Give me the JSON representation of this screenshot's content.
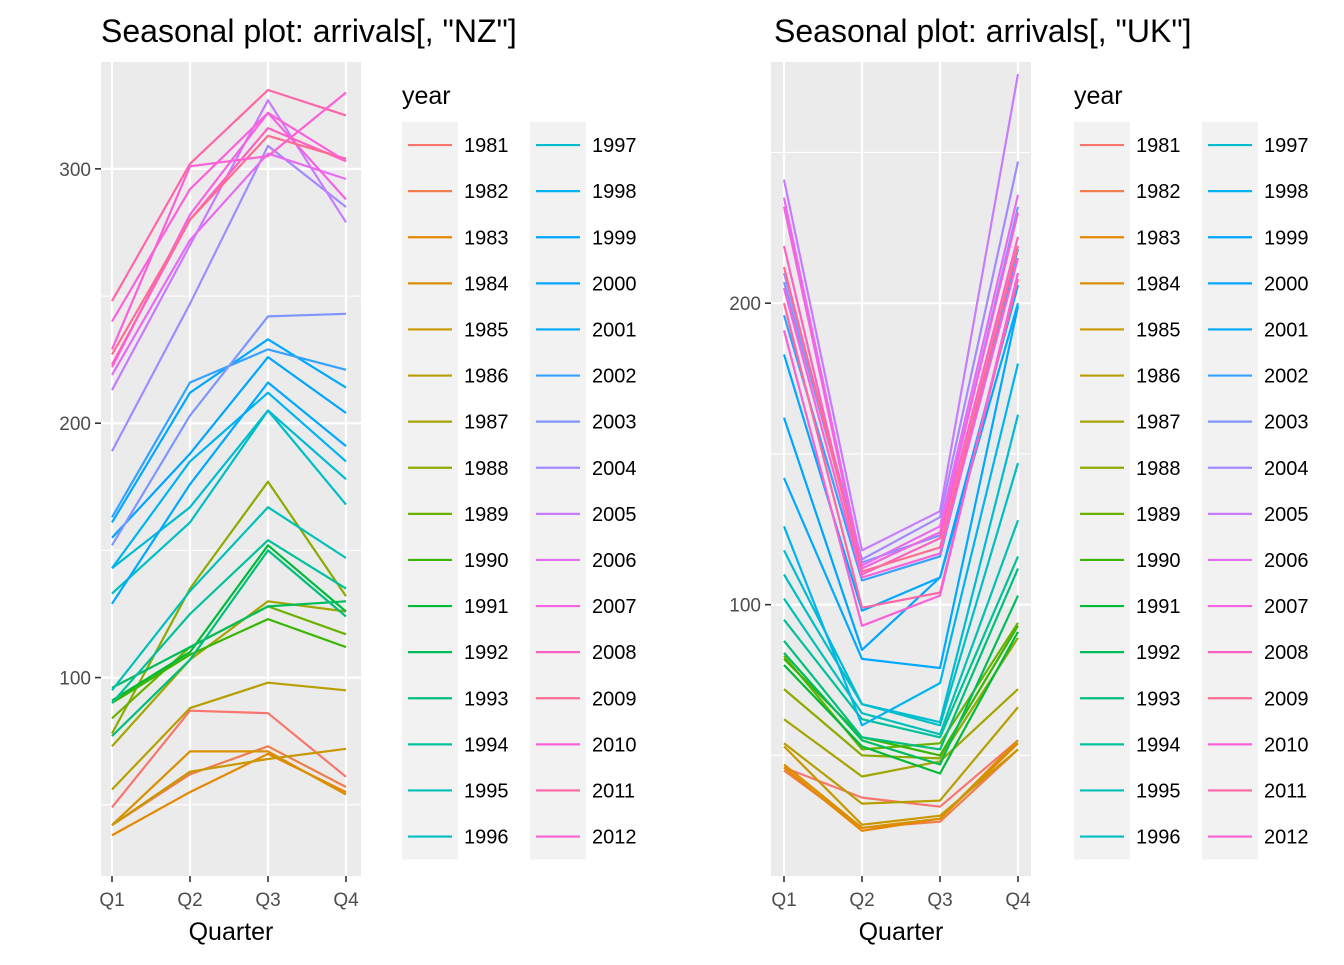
{
  "x_axis": {
    "label": "Quarter",
    "ticks": [
      "Q1",
      "Q2",
      "Q3",
      "Q4"
    ]
  },
  "legend": {
    "title": "year",
    "years": [
      "1981",
      "1982",
      "1983",
      "1984",
      "1985",
      "1986",
      "1987",
      "1988",
      "1989",
      "1990",
      "1991",
      "1992",
      "1993",
      "1994",
      "1995",
      "1996",
      "1997",
      "1998",
      "1999",
      "2000",
      "2001",
      "2002",
      "2003",
      "2004",
      "2005",
      "2006",
      "2007",
      "2008",
      "2009",
      "2010",
      "2011",
      "2012"
    ],
    "colors": [
      "#F8766D",
      "#F07E4D",
      "#E58700",
      "#D89000",
      "#C99800",
      "#B79F00",
      "#A3A500",
      "#8BAB00",
      "#6BB100",
      "#39B600",
      "#00BA38",
      "#00BD5C",
      "#00BF7D",
      "#00C19A",
      "#00C0B8",
      "#00BFC4",
      "#00BCD1",
      "#00B4F0",
      "#00A9FF",
      "#00A5FF",
      "#00A9FF",
      "#35A2FF",
      "#7F96FF",
      "#A58AFF",
      "#C77CFF",
      "#E76BF3",
      "#F564E3",
      "#FF61C3",
      "#FF6C91",
      "#FA62DB",
      "#FF66A8",
      "#FB61D7"
    ]
  },
  "chart_data": [
    {
      "type": "line",
      "title": "Seasonal plot: arrivals[, \"NZ\"]",
      "xlabel": "Quarter",
      "ylabel": "",
      "categories": [
        "Q1",
        "Q2",
        "Q3",
        "Q4"
      ],
      "ylim": [
        22,
        342
      ],
      "yticks": [
        100,
        200,
        300
      ],
      "grid": true,
      "legend_position": "right",
      "series": [
        {
          "name": "1981",
          "values": [
            49,
            87,
            86,
            61
          ]
        },
        {
          "name": "1982",
          "values": [
            42,
            62,
            73,
            57
          ]
        },
        {
          "name": "1983",
          "values": [
            38,
            55,
            70,
            55
          ]
        },
        {
          "name": "1984",
          "values": [
            42,
            71,
            71,
            54
          ]
        },
        {
          "name": "1985",
          "values": [
            42,
            63,
            68,
            72
          ]
        },
        {
          "name": "1986",
          "values": [
            56,
            88,
            98,
            95
          ]
        },
        {
          "name": "1987",
          "values": [
            73,
            107,
            130,
            126
          ]
        },
        {
          "name": "1988",
          "values": [
            78,
            135,
            177,
            132
          ]
        },
        {
          "name": "1989",
          "values": [
            84,
            112,
            128,
            117
          ]
        },
        {
          "name": "1990",
          "values": [
            90,
            109,
            123,
            112
          ]
        },
        {
          "name": "1991",
          "values": [
            91,
            110,
            152,
            126
          ]
        },
        {
          "name": "1992",
          "values": [
            96,
            112,
            128,
            130
          ]
        },
        {
          "name": "1993",
          "values": [
            77,
            107,
            150,
            124
          ]
        },
        {
          "name": "1994",
          "values": [
            90,
            125,
            154,
            135
          ]
        },
        {
          "name": "1995",
          "values": [
            95,
            134,
            167,
            147
          ]
        },
        {
          "name": "1996",
          "values": [
            133,
            161,
            205,
            168
          ]
        },
        {
          "name": "1997",
          "values": [
            143,
            167,
            205,
            178
          ]
        },
        {
          "name": "1998",
          "values": [
            143,
            185,
            212,
            185
          ]
        },
        {
          "name": "1999",
          "values": [
            129,
            176,
            216,
            191
          ]
        },
        {
          "name": "2000",
          "values": [
            155,
            188,
            226,
            204
          ]
        },
        {
          "name": "2001",
          "values": [
            161,
            212,
            233,
            214
          ]
        },
        {
          "name": "2002",
          "values": [
            163,
            216,
            229,
            221
          ]
        },
        {
          "name": "2003",
          "values": [
            152,
            203,
            242,
            243
          ]
        },
        {
          "name": "2004",
          "values": [
            189,
            247,
            309,
            285
          ]
        },
        {
          "name": "2005",
          "values": [
            213,
            270,
            327,
            279
          ]
        },
        {
          "name": "2006",
          "values": [
            219,
            272,
            306,
            296
          ]
        },
        {
          "name": "2007",
          "values": [
            222,
            282,
            322,
            288
          ]
        },
        {
          "name": "2008",
          "values": [
            223,
            280,
            316,
            303
          ]
        },
        {
          "name": "2009",
          "values": [
            227,
            280,
            313,
            304
          ]
        },
        {
          "name": "2010",
          "values": [
            240,
            292,
            322,
            303
          ]
        },
        {
          "name": "2011",
          "values": [
            248,
            302,
            331,
            321
          ]
        },
        {
          "name": "2012",
          "values": [
            229,
            301,
            305,
            330
          ]
        }
      ]
    },
    {
      "type": "line",
      "title": "Seasonal plot: arrivals[, \"UK\"]",
      "xlabel": "Quarter",
      "ylabel": "",
      "categories": [
        "Q1",
        "Q2",
        "Q3",
        "Q4"
      ],
      "ylim": [
        10,
        280
      ],
      "yticks": [
        100,
        200
      ],
      "grid": true,
      "legend_position": "right",
      "series": [
        {
          "name": "1981",
          "values": [
            46,
            36,
            33,
            55
          ]
        },
        {
          "name": "1982",
          "values": [
            45,
            26,
            28,
            52
          ]
        },
        {
          "name": "1983",
          "values": [
            46,
            25,
            29,
            54
          ]
        },
        {
          "name": "1984",
          "values": [
            47,
            26,
            29,
            55
          ]
        },
        {
          "name": "1985",
          "values": [
            53,
            27,
            30,
            52
          ]
        },
        {
          "name": "1986",
          "values": [
            54,
            34,
            35,
            66
          ]
        },
        {
          "name": "1987",
          "values": [
            62,
            43,
            48,
            72
          ]
        },
        {
          "name": "1988",
          "values": [
            72,
            50,
            49,
            89
          ]
        },
        {
          "name": "1989",
          "values": [
            83,
            52,
            54,
            94
          ]
        },
        {
          "name": "1990",
          "values": [
            82,
            56,
            50,
            93
          ]
        },
        {
          "name": "1991",
          "values": [
            80,
            53,
            44,
            91
          ]
        },
        {
          "name": "1992",
          "values": [
            84,
            55,
            47,
            103
          ]
        },
        {
          "name": "1993",
          "values": [
            88,
            56,
            52,
            112
          ]
        },
        {
          "name": "1994",
          "values": [
            95,
            62,
            56,
            116
          ]
        },
        {
          "name": "1995",
          "values": [
            102,
            64,
            57,
            128
          ]
        },
        {
          "name": "1996",
          "values": [
            110,
            67,
            60,
            147
          ]
        },
        {
          "name": "1997",
          "values": [
            118,
            67,
            61,
            163
          ]
        },
        {
          "name": "1998",
          "values": [
            126,
            60,
            74,
            180
          ]
        },
        {
          "name": "1999",
          "values": [
            142,
            82,
            79,
            199
          ]
        },
        {
          "name": "2000",
          "values": [
            162,
            85,
            109,
            206
          ]
        },
        {
          "name": "2001",
          "values": [
            183,
            98,
            109,
            200
          ]
        },
        {
          "name": "2002",
          "values": [
            196,
            108,
            116,
            218
          ]
        },
        {
          "name": "2003",
          "values": [
            207,
            114,
            123,
            232
          ]
        },
        {
          "name": "2004",
          "values": [
            210,
            115,
            129,
            247
          ]
        },
        {
          "name": "2005",
          "values": [
            241,
            118,
            131,
            276
          ]
        },
        {
          "name": "2006",
          "values": [
            235,
            113,
            126,
            236
          ]
        },
        {
          "name": "2007",
          "values": [
            232,
            112,
            124,
            230
          ]
        },
        {
          "name": "2008",
          "values": [
            219,
            110,
            122,
            222
          ]
        },
        {
          "name": "2009",
          "values": [
            212,
            111,
            119,
            219
          ]
        },
        {
          "name": "2010",
          "values": [
            205,
            109,
            117,
            215
          ]
        },
        {
          "name": "2011",
          "values": [
            200,
            99,
            104,
            208
          ]
        },
        {
          "name": "2012",
          "values": [
            191,
            93,
            103,
            210
          ]
        }
      ]
    }
  ]
}
